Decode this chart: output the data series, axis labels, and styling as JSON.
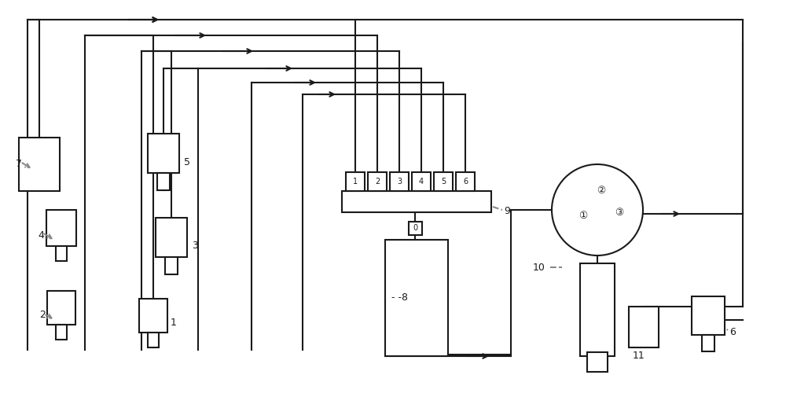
{
  "bg_color": "#ffffff",
  "lc": "#1a1a1a",
  "dc": "#888888",
  "lw": 1.5,
  "fig_w": 10.0,
  "fig_h": 5.05,
  "dpi": 100
}
